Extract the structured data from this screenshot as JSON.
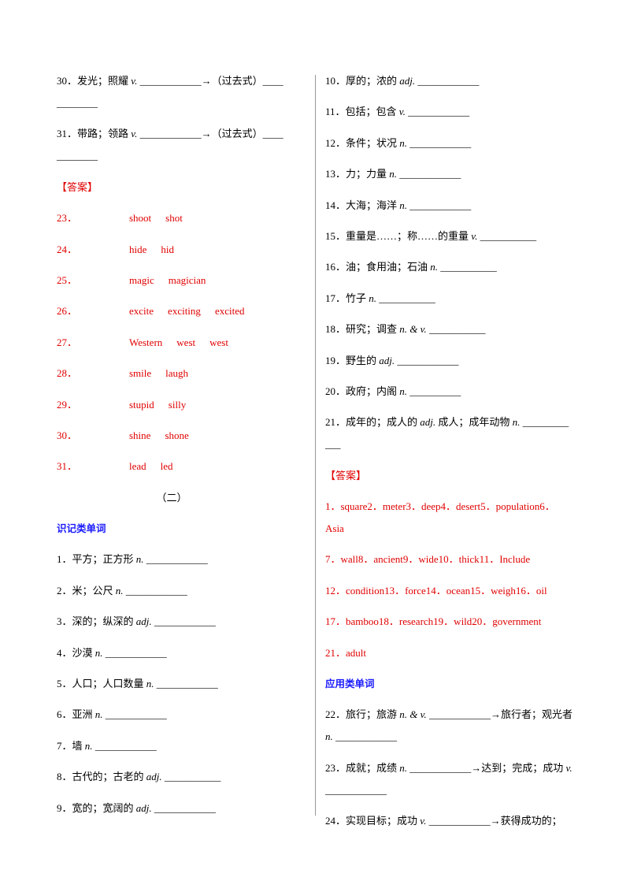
{
  "left": {
    "items_top": [
      {
        "segments": [
          {
            "text": "30．发光；照耀 "
          },
          {
            "em": "v."
          },
          {
            "text": " ____________→（过去式）____________"
          }
        ]
      },
      {
        "segments": [
          {
            "text": "31．带路；领路 "
          },
          {
            "em": "v."
          },
          {
            "text": " ____________→（过去式）____________"
          }
        ]
      }
    ],
    "answer_label": "【答案】",
    "answers": [
      {
        "num": "23．",
        "words": [
          "shoot",
          "shot"
        ]
      },
      {
        "num": "24．",
        "words": [
          "hide",
          "hid"
        ]
      },
      {
        "num": "25．",
        "words": [
          "magic",
          "magician"
        ]
      },
      {
        "num": "26．",
        "words": [
          "excite",
          "exciting",
          "excited"
        ]
      },
      {
        "num": "27．",
        "words": [
          "Western",
          "west",
          "west"
        ]
      },
      {
        "num": "28．",
        "words": [
          "smile",
          "laugh"
        ]
      },
      {
        "num": "29．",
        "words": [
          "stupid",
          "silly"
        ]
      },
      {
        "num": "30．",
        "words": [
          "shine",
          "shone"
        ]
      },
      {
        "num": "31．",
        "words": [
          "lead",
          "led"
        ]
      }
    ],
    "section": "（二）",
    "heading": "识记类单词",
    "items": [
      {
        "segments": [
          {
            "text": "1．平方；正方形 "
          },
          {
            "em": "n."
          },
          {
            "text": " ____________"
          }
        ]
      },
      {
        "segments": [
          {
            "text": "2．米；公尺 "
          },
          {
            "em": "n."
          },
          {
            "text": " ____________"
          }
        ]
      },
      {
        "segments": [
          {
            "text": "3．深的；纵深的 "
          },
          {
            "em": "adj."
          },
          {
            "text": " ____________"
          }
        ]
      },
      {
        "segments": [
          {
            "text": "4．沙漠 "
          },
          {
            "em": "n."
          },
          {
            "text": " ____________"
          }
        ]
      },
      {
        "segments": [
          {
            "text": "5．人口；人口数量 "
          },
          {
            "em": "n."
          },
          {
            "text": " ____________"
          }
        ]
      },
      {
        "segments": [
          {
            "text": "6．亚洲 "
          },
          {
            "em": "n."
          },
          {
            "text": " ____________"
          }
        ]
      },
      {
        "segments": [
          {
            "text": "7．墙 "
          },
          {
            "em": "n."
          },
          {
            "text": " ____________"
          }
        ]
      },
      {
        "segments": [
          {
            "text": "8．古代的；古老的 "
          },
          {
            "em": "adj."
          },
          {
            "text": " ___________"
          }
        ]
      },
      {
        "segments": [
          {
            "text": "9．宽的；宽阔的 "
          },
          {
            "em": "adj."
          },
          {
            "text": " ____________"
          }
        ]
      }
    ]
  },
  "right": {
    "items": [
      {
        "segments": [
          {
            "text": "10．厚的；浓的 "
          },
          {
            "em": "adj."
          },
          {
            "text": " ____________"
          }
        ]
      },
      {
        "segments": [
          {
            "text": "11．包括；包含 "
          },
          {
            "em": "v."
          },
          {
            "text": " ____________"
          }
        ]
      },
      {
        "segments": [
          {
            "text": "12．条件；状况 "
          },
          {
            "em": "n."
          },
          {
            "text": " ____________"
          }
        ]
      },
      {
        "segments": [
          {
            "text": "13．力；力量 "
          },
          {
            "em": "n."
          },
          {
            "text": " ____________"
          }
        ]
      },
      {
        "segments": [
          {
            "text": "14．大海；海洋 "
          },
          {
            "em": "n."
          },
          {
            "text": " ____________"
          }
        ]
      },
      {
        "segments": [
          {
            "text": "15．重量是……；称……的重量 "
          },
          {
            "em": "v."
          },
          {
            "text": " ___________"
          }
        ]
      },
      {
        "segments": [
          {
            "text": "16．油；食用油；石油 "
          },
          {
            "em": "n."
          },
          {
            "text": " ___________"
          }
        ]
      },
      {
        "segments": [
          {
            "text": "17．竹子 "
          },
          {
            "em": "n."
          },
          {
            "text": " ___________"
          }
        ]
      },
      {
        "segments": [
          {
            "text": "18．研究；调查 "
          },
          {
            "em": "n. & v."
          },
          {
            "text": " ___________"
          }
        ]
      },
      {
        "segments": [
          {
            "text": "19．野生的 "
          },
          {
            "em": "adj."
          },
          {
            "text": " ____________"
          }
        ]
      },
      {
        "segments": [
          {
            "text": "20．政府；内阁 "
          },
          {
            "em": "n."
          },
          {
            "text": " __________"
          }
        ]
      },
      {
        "segments": [
          {
            "text": "21．成年的；成人的 "
          },
          {
            "em": "adj."
          },
          {
            "text": " 成人；成年动物 "
          },
          {
            "em": "n."
          },
          {
            "text": " ____________"
          }
        ]
      }
    ],
    "answer_label": "【答案】",
    "answers": [
      "1．square2．meter3．deep4．desert5．population6．Asia",
      "7．wall8．ancient9．wide10．thick11．Include",
      "12．condition13．force14．ocean15．weigh16．oil",
      "17．bamboo18．research19．wild20．government",
      "21．adult"
    ],
    "heading": "应用类单词",
    "items_bottom": [
      {
        "segments": [
          {
            "text": "22．旅行；旅游 "
          },
          {
            "em": "n. & v."
          },
          {
            "text": " ____________→旅行者；观光者 "
          },
          {
            "em": "n."
          },
          {
            "text": " ____________"
          }
        ]
      },
      {
        "segments": [
          {
            "text": "23．成就；成绩 "
          },
          {
            "em": "n."
          },
          {
            "text": " ____________→达到；完成；成功 "
          },
          {
            "em": "v."
          },
          {
            "text": " ____________"
          }
        ]
      },
      {
        "segments": [
          {
            "text": "24．实现目标；成功 "
          },
          {
            "em": "v."
          },
          {
            "text": " ____________→获得成功的；"
          }
        ]
      }
    ]
  }
}
